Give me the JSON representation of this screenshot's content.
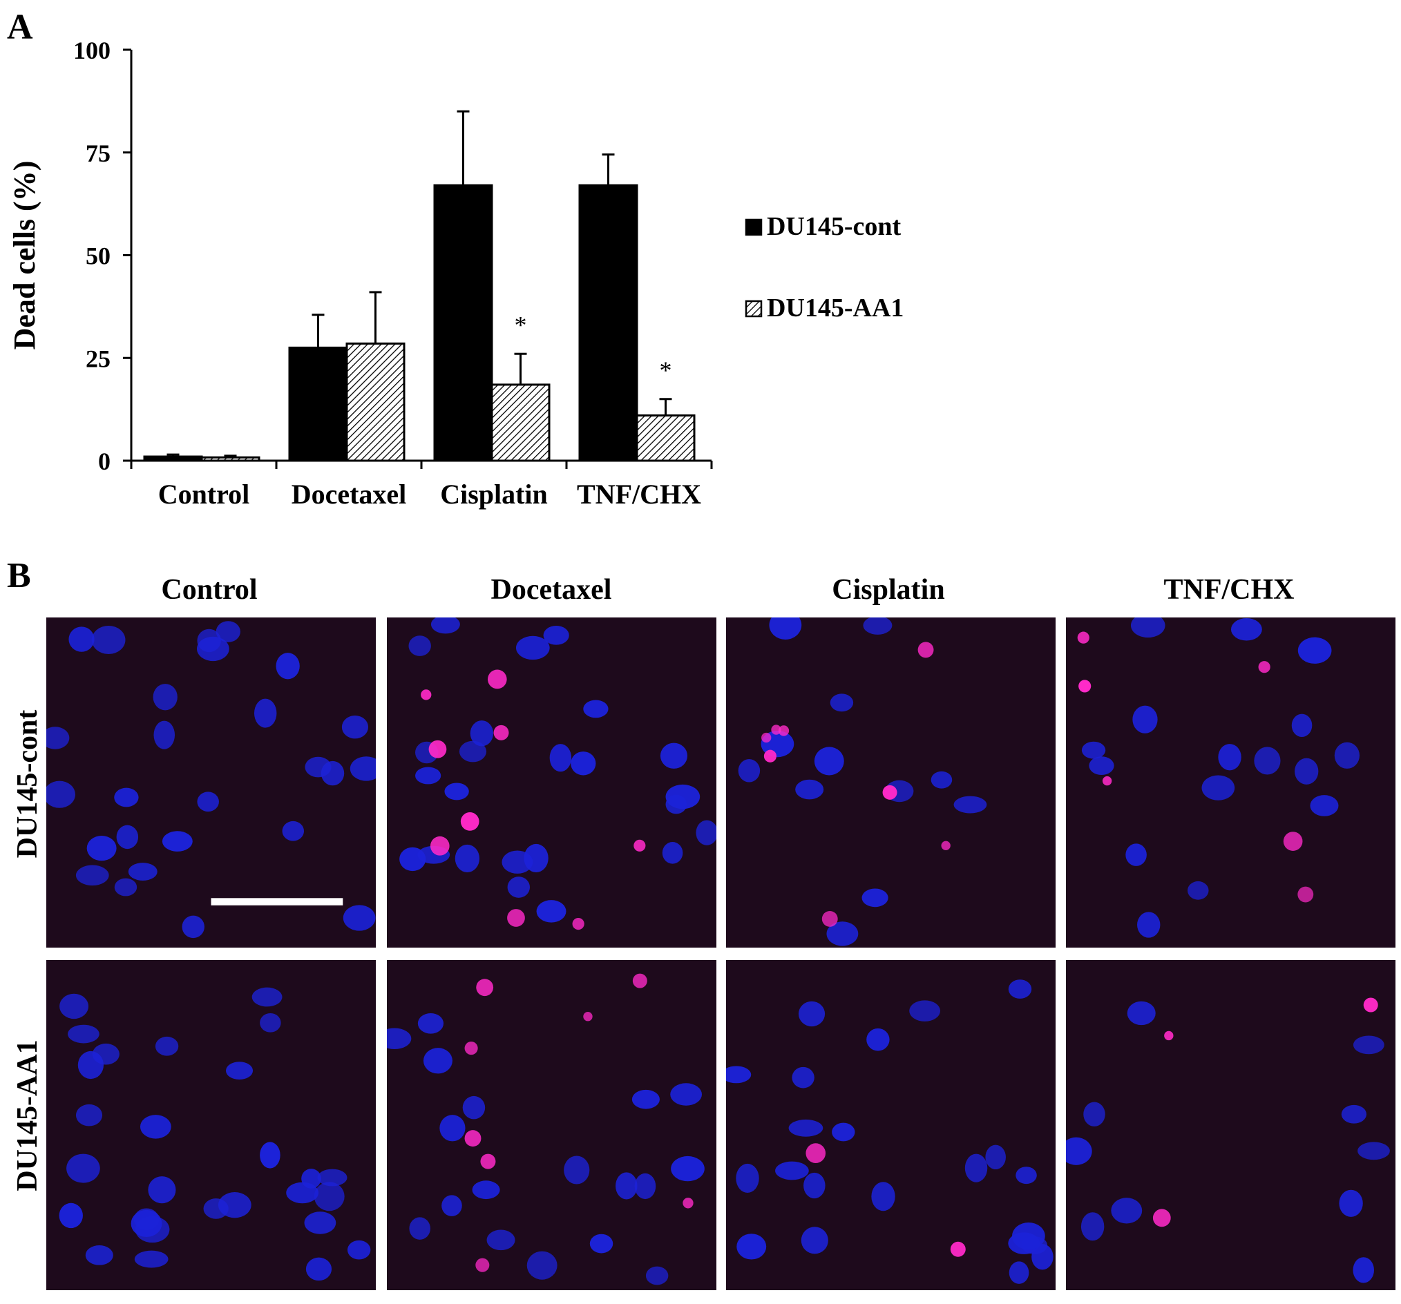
{
  "panel_a_label": "A",
  "panel_b_label": "B",
  "chart_data": {
    "type": "bar",
    "ylabel": "Dead cells (%)",
    "xlabel": "",
    "ylim": [
      0,
      100
    ],
    "yticks": [
      0,
      25,
      50,
      75,
      100
    ],
    "categories": [
      "Control",
      "Docetaxel",
      "Cisplatin",
      "TNF/CHX"
    ],
    "series": [
      {
        "name": "DU145-cont",
        "values": [
          1.0,
          27.5,
          67.0,
          67.0
        ],
        "errors": [
          0.5,
          8.0,
          18.0,
          7.5
        ],
        "fill": "solid"
      },
      {
        "name": "DU145-AA1",
        "values": [
          0.8,
          28.5,
          18.5,
          11.0
        ],
        "errors": [
          0.4,
          12.5,
          7.5,
          4.0
        ],
        "fill": "hatched"
      }
    ],
    "annotations": [
      {
        "category": "Cisplatin",
        "series": "DU145-AA1",
        "text": "*"
      },
      {
        "category": "TNF/CHX",
        "series": "DU145-AA1",
        "text": "*"
      }
    ],
    "legend_position": "right",
    "colors": {
      "solid": "#000000",
      "hatch": "#000000"
    }
  },
  "panel_b": {
    "columns": [
      "Control",
      "Docetaxel",
      "Cisplatin",
      "TNF/CHX"
    ],
    "rows": [
      "DU145-cont",
      "DU145-AA1"
    ],
    "colors": {
      "background": "#1e0a1c",
      "nucleus": "#1c22d8",
      "dead": "#ff2ac8"
    },
    "scale_bar": {
      "row": 0,
      "col": 0
    }
  }
}
